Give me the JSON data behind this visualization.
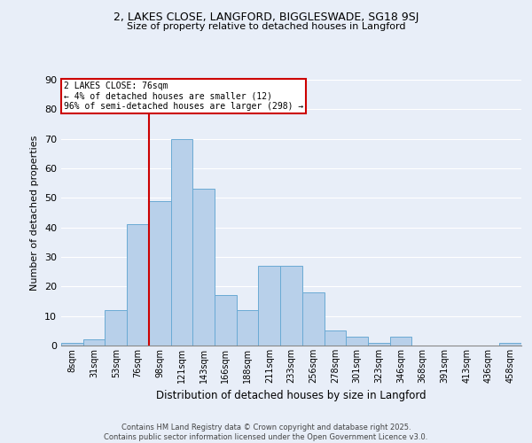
{
  "title1": "2, LAKES CLOSE, LANGFORD, BIGGLESWADE, SG18 9SJ",
  "title2": "Size of property relative to detached houses in Langford",
  "xlabel": "Distribution of detached houses by size in Langford",
  "ylabel": "Number of detached properties",
  "categories": [
    "8sqm",
    "31sqm",
    "53sqm",
    "76sqm",
    "98sqm",
    "121sqm",
    "143sqm",
    "166sqm",
    "188sqm",
    "211sqm",
    "233sqm",
    "256sqm",
    "278sqm",
    "301sqm",
    "323sqm",
    "346sqm",
    "368sqm",
    "391sqm",
    "413sqm",
    "436sqm",
    "458sqm"
  ],
  "values": [
    1,
    2,
    12,
    41,
    49,
    70,
    53,
    17,
    12,
    27,
    27,
    18,
    5,
    3,
    1,
    3,
    0,
    0,
    0,
    0,
    1
  ],
  "bar_color": "#b8d0ea",
  "bar_edge_color": "#6aaad4",
  "annotation_line1": "2 LAKES CLOSE: 76sqm",
  "annotation_line2": "← 4% of detached houses are smaller (12)",
  "annotation_line3": "96% of semi-detached houses are larger (298) →",
  "annotation_box_color": "#ffffff",
  "annotation_box_edge": "#cc0000",
  "vertical_line_color": "#cc0000",
  "background_color": "#e8eef8",
  "grid_color": "#ffffff",
  "footer": "Contains HM Land Registry data © Crown copyright and database right 2025.\nContains public sector information licensed under the Open Government Licence v3.0.",
  "ylim": [
    0,
    90
  ],
  "yticks": [
    0,
    10,
    20,
    30,
    40,
    50,
    60,
    70,
    80,
    90
  ],
  "marker_bin_idx": 3
}
